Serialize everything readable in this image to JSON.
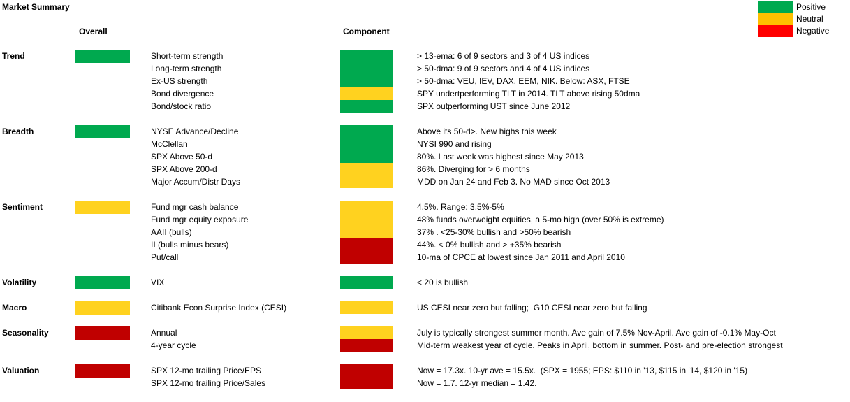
{
  "title": "Market Summary",
  "columns": {
    "overall": "Overall",
    "component": "Component"
  },
  "legend": [
    {
      "label": "Positive",
      "color": "#00A94F"
    },
    {
      "label": "Neutral",
      "color": "#FFC000"
    },
    {
      "label": "Negative",
      "color": "#FF0000"
    }
  ],
  "colors": {
    "positive": "#00A94F",
    "neutral": "#FFD21F",
    "negative": "#C00000"
  },
  "sections": [
    {
      "name": "Trend",
      "overall": "positive",
      "components": [
        {
          "label": "Short-term strength",
          "status": "positive",
          "note": "> 13-ema: 6 of 9 sectors and 3 of 4 US indices"
        },
        {
          "label": "Long-term strength",
          "status": "positive",
          "note": "> 50-dma: 9 of 9 sectors and 4 of 4 US indices"
        },
        {
          "label": "Ex-US strength",
          "status": "positive",
          "note": "> 50-dma: VEU, IEV, DAX, EEM, NIK. Below: ASX, FTSE"
        },
        {
          "label": "Bond divergence",
          "status": "neutral",
          "note": "SPY undertperforming TLT in 2014. TLT above rising 50dma"
        },
        {
          "label": "Bond/stock ratio",
          "status": "positive",
          "note": "SPX outperforming UST since June 2012"
        }
      ]
    },
    {
      "name": "Breadth",
      "overall": "positive",
      "components": [
        {
          "label": "NYSE Advance/Decline",
          "status": "positive",
          "note": "Above its 50-d>. New highs this week"
        },
        {
          "label": "McClellan",
          "status": "positive",
          "note": "NYSI 990 and rising"
        },
        {
          "label": "SPX Above 50-d",
          "status": "positive",
          "note": "80%. Last week was highest since May 2013"
        },
        {
          "label": "SPX Above 200-d",
          "status": "neutral",
          "note": "86%. Diverging for > 6 months"
        },
        {
          "label": "Major Accum/Distr Days",
          "status": "neutral",
          "note": "MDD on Jan 24 and Feb 3. No MAD since Oct 2013"
        }
      ]
    },
    {
      "name": "Sentiment",
      "overall": "neutral",
      "components": [
        {
          "label": "Fund mgr cash balance",
          "status": "neutral",
          "note": "4.5%. Range: 3.5%-5%"
        },
        {
          "label": "Fund mgr equity exposure",
          "status": "neutral",
          "note": "48% funds overweight equities, a 5-mo high (over 50% is extreme)"
        },
        {
          "label": "AAII (bulls)",
          "status": "neutral",
          "note": "37% . <25-30% bullish and >50% bearish"
        },
        {
          "label": "II (bulls minus bears)",
          "status": "negative",
          "note": "44%. < 0% bullish and > +35% bearish"
        },
        {
          "label": "Put/call",
          "status": "negative",
          "note": "10-ma of CPCE at lowest since Jan 2011 and April 2010"
        }
      ]
    },
    {
      "name": "Volatility",
      "overall": "positive",
      "components": [
        {
          "label": "VIX",
          "status": "positive",
          "note": "< 20 is bullish"
        }
      ]
    },
    {
      "name": "Macro",
      "overall": "neutral",
      "components": [
        {
          "label": "Citibank Econ Surprise Index (CESI)",
          "status": "neutral",
          "note": "US CESI near zero but falling;  G10 CESI near zero but falling"
        }
      ]
    },
    {
      "name": "Seasonality",
      "overall": "negative",
      "components": [
        {
          "label": "Annual",
          "status": "neutral",
          "note": "July is typically strongest summer month. Ave gain of 7.5% Nov-April. Ave gain of -0.1% May-Oct"
        },
        {
          "label": "4-year cycle",
          "status": "negative",
          "note": "Mid-term weakest year of cycle. Peaks in April, bottom in summer. Post- and pre-election strongest"
        }
      ]
    },
    {
      "name": "Valuation",
      "overall": "negative",
      "components": [
        {
          "label": "SPX 12-mo trailing Price/EPS",
          "status": "negative",
          "note": "Now = 17.3x. 10-yr ave = 15.5x.  (SPX = 1955; EPS: $110 in '13, $115 in '14, $120 in '15)"
        },
        {
          "label": "SPX 12-mo trailing Price/Sales",
          "status": "negative",
          "note": "Now = 1.7. 12-yr median = 1.42."
        }
      ]
    }
  ]
}
